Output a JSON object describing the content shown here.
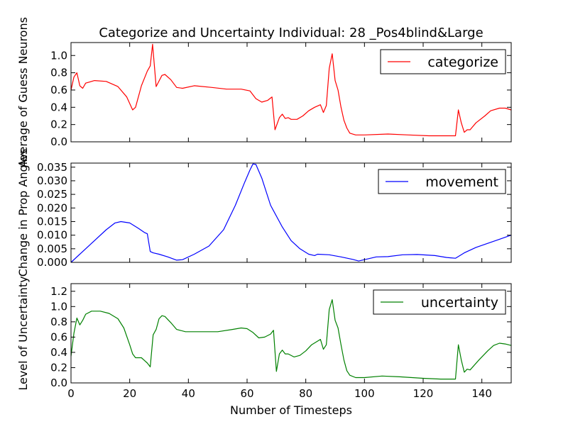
{
  "figure": {
    "title": "Categorize and Uncertainty Individual: 28 _Pos4blind&Large",
    "xlabel": "Number of Timesteps",
    "xticks": [
      "0",
      "20",
      "40",
      "60",
      "80",
      "100",
      "120",
      "140"
    ]
  },
  "chart_data": [
    {
      "type": "line",
      "title": "Categorize and Uncertainty Individual: 28 _Pos4blind&Large",
      "xlabel": "",
      "ylabel": "Average of Guess Neurons",
      "xlim": [
        0,
        150
      ],
      "ylim": [
        0,
        1.15
      ],
      "yticks": [
        "0.0",
        "0.2",
        "0.4",
        "0.6",
        "0.8",
        "1.0"
      ],
      "ytick_values": [
        0,
        0.2,
        0.4,
        0.6,
        0.8,
        1.0
      ],
      "legend_position": "top-right",
      "grid": false,
      "series": [
        {
          "name": "categorize",
          "color": "#ff0000",
          "points": [
            [
              0,
              0.6
            ],
            [
              1,
              0.75
            ],
            [
              2,
              0.8
            ],
            [
              3,
              0.65
            ],
            [
              4,
              0.62
            ],
            [
              5,
              0.68
            ],
            [
              8,
              0.71
            ],
            [
              12,
              0.7
            ],
            [
              16,
              0.64
            ],
            [
              19,
              0.52
            ],
            [
              21,
              0.37
            ],
            [
              22,
              0.4
            ],
            [
              24,
              0.65
            ],
            [
              26,
              0.82
            ],
            [
              27,
              0.88
            ],
            [
              27.8,
              1.13
            ],
            [
              29,
              0.64
            ],
            [
              31,
              0.77
            ],
            [
              32,
              0.78
            ],
            [
              34,
              0.72
            ],
            [
              36,
              0.63
            ],
            [
              38,
              0.62
            ],
            [
              42,
              0.65
            ],
            [
              48,
              0.63
            ],
            [
              53,
              0.61
            ],
            [
              58,
              0.61
            ],
            [
              61,
              0.59
            ],
            [
              63,
              0.5
            ],
            [
              65,
              0.46
            ],
            [
              67,
              0.48
            ],
            [
              68.5,
              0.52
            ],
            [
              69.5,
              0.14
            ],
            [
              71,
              0.28
            ],
            [
              72,
              0.32
            ],
            [
              73,
              0.27
            ],
            [
              74,
              0.28
            ],
            [
              75,
              0.26
            ],
            [
              77,
              0.26
            ],
            [
              79,
              0.3
            ],
            [
              81,
              0.36
            ],
            [
              83,
              0.4
            ],
            [
              85,
              0.43
            ],
            [
              86,
              0.34
            ],
            [
              87,
              0.42
            ],
            [
              88,
              0.85
            ],
            [
              89,
              1.02
            ],
            [
              90,
              0.71
            ],
            [
              91,
              0.6
            ],
            [
              92,
              0.4
            ],
            [
              93,
              0.25
            ],
            [
              94,
              0.16
            ],
            [
              95,
              0.1
            ],
            [
              97,
              0.08
            ],
            [
              100,
              0.08
            ],
            [
              108,
              0.09
            ],
            [
              115,
              0.08
            ],
            [
              122,
              0.07
            ],
            [
              131,
              0.07
            ],
            [
              132,
              0.37
            ],
            [
              133,
              0.22
            ],
            [
              134,
              0.11
            ],
            [
              135,
              0.14
            ],
            [
              136,
              0.14
            ],
            [
              138,
              0.22
            ],
            [
              141,
              0.3
            ],
            [
              143,
              0.36
            ],
            [
              146,
              0.39
            ],
            [
              148,
              0.39
            ],
            [
              150,
              0.37
            ]
          ]
        }
      ]
    },
    {
      "type": "line",
      "xlabel": "",
      "ylabel": "Change in Prop Angles",
      "xlim": [
        0,
        150
      ],
      "ylim": [
        0,
        0.0365
      ],
      "yticks": [
        "0.000",
        "0.005",
        "0.010",
        "0.015",
        "0.020",
        "0.025",
        "0.030",
        "0.035"
      ],
      "ytick_values": [
        0,
        0.005,
        0.01,
        0.015,
        0.02,
        0.025,
        0.03,
        0.035
      ],
      "legend_position": "top-right",
      "grid": false,
      "series": [
        {
          "name": "movement",
          "color": "#0000ff",
          "points": [
            [
              0,
              0
            ],
            [
              4,
              0.004
            ],
            [
              8,
              0.008
            ],
            [
              12,
              0.012
            ],
            [
              15,
              0.0145
            ],
            [
              17,
              0.015
            ],
            [
              20,
              0.0145
            ],
            [
              23,
              0.0125
            ],
            [
              25,
              0.011
            ],
            [
              26,
              0.0105
            ],
            [
              27,
              0.004
            ],
            [
              28,
              0.0035
            ],
            [
              30,
              0.003
            ],
            [
              33,
              0.002
            ],
            [
              36,
              0.0008
            ],
            [
              38,
              0.001
            ],
            [
              42,
              0.003
            ],
            [
              47,
              0.006
            ],
            [
              52,
              0.012
            ],
            [
              56,
              0.021
            ],
            [
              59,
              0.029
            ],
            [
              61,
              0.034
            ],
            [
              62,
              0.0362
            ],
            [
              63,
              0.036
            ],
            [
              65,
              0.031
            ],
            [
              68,
              0.021
            ],
            [
              72,
              0.013
            ],
            [
              75,
              0.008
            ],
            [
              78,
              0.005
            ],
            [
              81,
              0.003
            ],
            [
              83,
              0.0025
            ],
            [
              84,
              0.003
            ],
            [
              88,
              0.0028
            ],
            [
              92,
              0.002
            ],
            [
              96,
              0.0011
            ],
            [
              98,
              0.0005
            ],
            [
              100,
              0.001
            ],
            [
              104,
              0.002
            ],
            [
              108,
              0.0021
            ],
            [
              113,
              0.0028
            ],
            [
              118,
              0.0029
            ],
            [
              124,
              0.0025
            ],
            [
              128,
              0.0018
            ],
            [
              131,
              0.0015
            ],
            [
              134,
              0.0035
            ],
            [
              138,
              0.0055
            ],
            [
              142,
              0.007
            ],
            [
              146,
              0.0085
            ],
            [
              150,
              0.01
            ]
          ]
        }
      ]
    },
    {
      "type": "line",
      "xlabel": "Number of Timesteps",
      "ylabel": "Level of Uncertainty",
      "xlim": [
        0,
        150
      ],
      "ylim": [
        0,
        1.3
      ],
      "yticks": [
        "0.0",
        "0.2",
        "0.4",
        "0.6",
        "0.8",
        "1.0",
        "1.2"
      ],
      "ytick_values": [
        0,
        0.2,
        0.4,
        0.6,
        0.8,
        1.0,
        1.2
      ],
      "legend_position": "top-right",
      "grid": false,
      "series": [
        {
          "name": "uncertainty",
          "color": "#008000",
          "points": [
            [
              0,
              0.35
            ],
            [
              1,
              0.65
            ],
            [
              2,
              0.85
            ],
            [
              3,
              0.76
            ],
            [
              4,
              0.82
            ],
            [
              5,
              0.9
            ],
            [
              7,
              0.94
            ],
            [
              10,
              0.94
            ],
            [
              13,
              0.91
            ],
            [
              16,
              0.84
            ],
            [
              18,
              0.72
            ],
            [
              20,
              0.5
            ],
            [
              21,
              0.38
            ],
            [
              22,
              0.33
            ],
            [
              24,
              0.33
            ],
            [
              26,
              0.26
            ],
            [
              27,
              0.21
            ],
            [
              28,
              0.63
            ],
            [
              29,
              0.7
            ],
            [
              30,
              0.84
            ],
            [
              31,
              0.88
            ],
            [
              32,
              0.87
            ],
            [
              34,
              0.79
            ],
            [
              36,
              0.7
            ],
            [
              39,
              0.67
            ],
            [
              45,
              0.67
            ],
            [
              50,
              0.67
            ],
            [
              55,
              0.7
            ],
            [
              58,
              0.72
            ],
            [
              60,
              0.71
            ],
            [
              62,
              0.66
            ],
            [
              64,
              0.59
            ],
            [
              66,
              0.6
            ],
            [
              68,
              0.64
            ],
            [
              69,
              0.69
            ],
            [
              70,
              0.15
            ],
            [
              71,
              0.38
            ],
            [
              72,
              0.43
            ],
            [
              73,
              0.38
            ],
            [
              74,
              0.38
            ],
            [
              76,
              0.34
            ],
            [
              78,
              0.36
            ],
            [
              80,
              0.42
            ],
            [
              82,
              0.5
            ],
            [
              85,
              0.57
            ],
            [
              86,
              0.44
            ],
            [
              87,
              0.5
            ],
            [
              88,
              0.96
            ],
            [
              89,
              1.09
            ],
            [
              90,
              0.82
            ],
            [
              91,
              0.72
            ],
            [
              92,
              0.5
            ],
            [
              93,
              0.3
            ],
            [
              94,
              0.16
            ],
            [
              95,
              0.1
            ],
            [
              97,
              0.07
            ],
            [
              100,
              0.07
            ],
            [
              106,
              0.09
            ],
            [
              112,
              0.08
            ],
            [
              120,
              0.06
            ],
            [
              126,
              0.05
            ],
            [
              131,
              0.05
            ],
            [
              132,
              0.5
            ],
            [
              133,
              0.3
            ],
            [
              134,
              0.14
            ],
            [
              135,
              0.18
            ],
            [
              136,
              0.17
            ],
            [
              139,
              0.3
            ],
            [
              142,
              0.42
            ],
            [
              144,
              0.49
            ],
            [
              146,
              0.52
            ],
            [
              148,
              0.51
            ],
            [
              150,
              0.49
            ]
          ]
        }
      ]
    }
  ]
}
